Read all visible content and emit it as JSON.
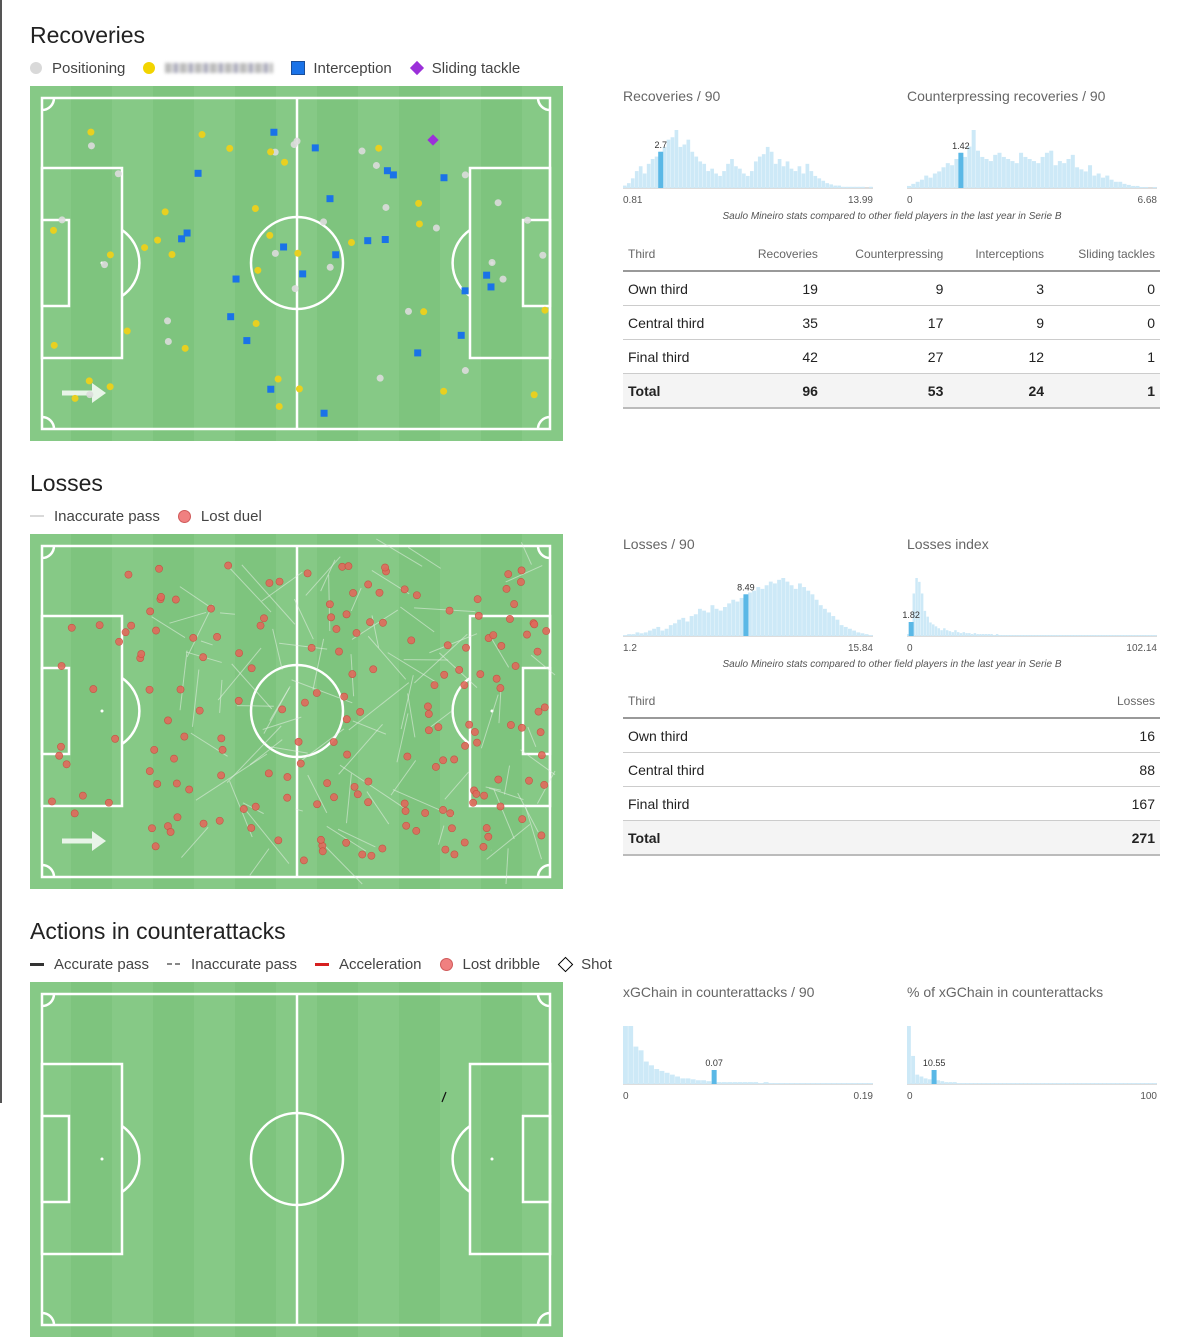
{
  "recoveries": {
    "title": "Recoveries",
    "legend": [
      {
        "label": "Positioning",
        "color": "#d9d9d9",
        "shape": "dot"
      },
      {
        "label": "",
        "color": "#f2d400",
        "shape": "dot",
        "blurred": true
      },
      {
        "label": "Interception",
        "color": "#1a73e8",
        "shape": "square"
      },
      {
        "label": "Sliding tackle",
        "color": "#9b30d9",
        "shape": "diamond"
      }
    ],
    "note": "Saulo Mineiro stats compared to other field players in the last year in Serie B",
    "table": {
      "headers": [
        "Third",
        "Recoveries",
        "Counterpressing",
        "Interceptions",
        "Sliding tackles"
      ],
      "rows": [
        [
          "Own third",
          "19",
          "9",
          "3",
          "0"
        ],
        [
          "Central third",
          "35",
          "17",
          "9",
          "0"
        ],
        [
          "Final third",
          "42",
          "27",
          "12",
          "1"
        ]
      ],
      "total": [
        "Total",
        "96",
        "53",
        "24",
        "1"
      ]
    }
  },
  "losses": {
    "title": "Losses",
    "legend": [
      {
        "label": "Inaccurate pass",
        "color": "#d9d9d9",
        "shape": "line"
      },
      {
        "label": "Lost duel",
        "color": "#f08080",
        "shape": "dot"
      }
    ],
    "note": "Saulo Mineiro stats compared to other field players in the last year in Serie B",
    "table": {
      "headers": [
        "Third",
        "Losses"
      ],
      "rows": [
        [
          "Own third",
          "16"
        ],
        [
          "Central third",
          "88"
        ],
        [
          "Final third",
          "167"
        ]
      ],
      "total": [
        "Total",
        "271"
      ]
    }
  },
  "counterattacks": {
    "title": "Actions in counterattacks",
    "legend": [
      {
        "label": "Accurate pass",
        "color": "#333333",
        "shape": "line"
      },
      {
        "label": "Inaccurate pass",
        "color": "#888888",
        "shape": "dashed"
      },
      {
        "label": "Acceleration",
        "color": "#d62020",
        "shape": "line"
      },
      {
        "label": "Lost dribble",
        "color": "#f08080",
        "shape": "dot"
      },
      {
        "label": "Shot",
        "color": "#000000",
        "shape": "diamond-outline"
      }
    ]
  },
  "colors": {
    "pitch": "#7ec47e",
    "pitch_stripe": "#86c986",
    "hist_bar": "#cde9f7",
    "hist_highlight": "#5ab8e6"
  },
  "chart_data": [
    {
      "type": "bar",
      "title": "Recoveries / 90",
      "xlim": [
        0.81,
        13.99
      ],
      "xmin_label": "0.81",
      "xmax_label": "13.99",
      "player_value": 2.7,
      "player_label": "2.7",
      "values": [
        2,
        4,
        8,
        14,
        18,
        12,
        20,
        24,
        26,
        30,
        34,
        40,
        42,
        48,
        34,
        36,
        40,
        30,
        26,
        22,
        20,
        14,
        16,
        12,
        10,
        14,
        20,
        24,
        18,
        16,
        12,
        10,
        14,
        22,
        26,
        28,
        34,
        30,
        20,
        24,
        18,
        22,
        16,
        14,
        18,
        12,
        20,
        14,
        10,
        8,
        6,
        4,
        3,
        2,
        2,
        1,
        1,
        1,
        1,
        1,
        1,
        0,
        1
      ]
    },
    {
      "type": "bar",
      "title": "Counterpressing recoveries / 90",
      "xlim": [
        0,
        6.68
      ],
      "xmin_label": "0",
      "xmax_label": "6.68",
      "player_value": 1.42,
      "player_label": "1.42",
      "values": [
        2,
        4,
        6,
        8,
        12,
        10,
        14,
        16,
        20,
        24,
        22,
        28,
        34,
        30,
        40,
        56,
        36,
        30,
        28,
        26,
        32,
        34,
        30,
        28,
        26,
        24,
        34,
        30,
        28,
        26,
        24,
        30,
        34,
        36,
        22,
        26,
        24,
        28,
        32,
        20,
        18,
        16,
        22,
        12,
        14,
        10,
        12,
        8,
        6,
        6,
        4,
        3,
        2,
        2,
        1,
        1,
        0,
        1
      ]
    },
    {
      "type": "bar",
      "title": "Losses / 90",
      "xlim": [
        1.2,
        15.84
      ],
      "xmin_label": "1.2",
      "xmax_label": "15.84",
      "player_value": 8.49,
      "player_label": "8.49",
      "values": [
        1,
        2,
        2,
        4,
        3,
        4,
        6,
        8,
        10,
        6,
        8,
        12,
        14,
        18,
        20,
        16,
        22,
        24,
        30,
        28,
        26,
        34,
        30,
        28,
        32,
        36,
        40,
        38,
        42,
        46,
        48,
        50,
        54,
        52,
        56,
        60,
        58,
        62,
        64,
        60,
        56,
        52,
        58,
        54,
        50,
        46,
        40,
        34,
        30,
        26,
        22,
        18,
        12,
        10,
        8,
        6,
        4,
        3,
        2,
        1
      ]
    },
    {
      "type": "bar",
      "title": "Losses index",
      "xlim": [
        0,
        102.14
      ],
      "xmin_label": "0",
      "xmax_label": "102.14",
      "player_value": 1.82,
      "player_label": "1.82",
      "values": [
        2,
        6,
        44,
        60,
        56,
        44,
        26,
        20,
        14,
        12,
        10,
        8,
        6,
        8,
        6,
        5,
        4,
        6,
        4,
        3,
        4,
        3,
        3,
        2,
        3,
        2,
        2,
        2,
        2,
        2,
        2,
        1,
        2,
        1,
        1,
        1,
        1,
        1,
        1,
        1,
        1,
        1,
        1,
        1,
        1,
        1,
        1,
        1,
        1,
        1,
        1,
        1,
        1,
        1,
        1,
        1,
        1,
        1,
        1,
        1,
        1,
        1,
        1,
        1,
        1,
        1,
        1,
        1,
        1,
        1,
        1,
        1,
        1,
        1,
        1,
        1,
        1,
        1,
        1,
        1,
        1,
        1,
        1,
        1,
        1,
        1,
        1,
        1,
        1,
        1
      ]
    },
    {
      "type": "bar",
      "title": "xGChain in counterattacks / 90",
      "xlim": [
        0,
        0.19
      ],
      "xmin_label": "0",
      "xmax_label": "0.19",
      "player_value": 0.07,
      "player_label": "0.07",
      "values": [
        62,
        62,
        40,
        36,
        24,
        20,
        16,
        14,
        12,
        10,
        8,
        6,
        6,
        5,
        4,
        4,
        3,
        3,
        2,
        2,
        2,
        2,
        2,
        2,
        2,
        2,
        1,
        2,
        1,
        1,
        1,
        1,
        1,
        1,
        1,
        1,
        1,
        1,
        1,
        1,
        1,
        1,
        1,
        1,
        1,
        1,
        1,
        1
      ]
    },
    {
      "type": "bar",
      "title": "% of xGChain in counterattacks",
      "xlim": [
        0,
        100
      ],
      "xmin_label": "0",
      "xmax_label": "100",
      "player_value": 10.55,
      "player_label": "10.55",
      "values": [
        62,
        30,
        10,
        8,
        6,
        5,
        4,
        4,
        3,
        2,
        2,
        2,
        1,
        1,
        1,
        1,
        1,
        1,
        1,
        1,
        1,
        1,
        1,
        1,
        1,
        1,
        1,
        1,
        1,
        1,
        1,
        1,
        1,
        1,
        1,
        1,
        1,
        1,
        1,
        1,
        1,
        1,
        1,
        1,
        1,
        1,
        1,
        1,
        1,
        1,
        1,
        1,
        1,
        1,
        1,
        1,
        1,
        1,
        1,
        1
      ]
    }
  ]
}
